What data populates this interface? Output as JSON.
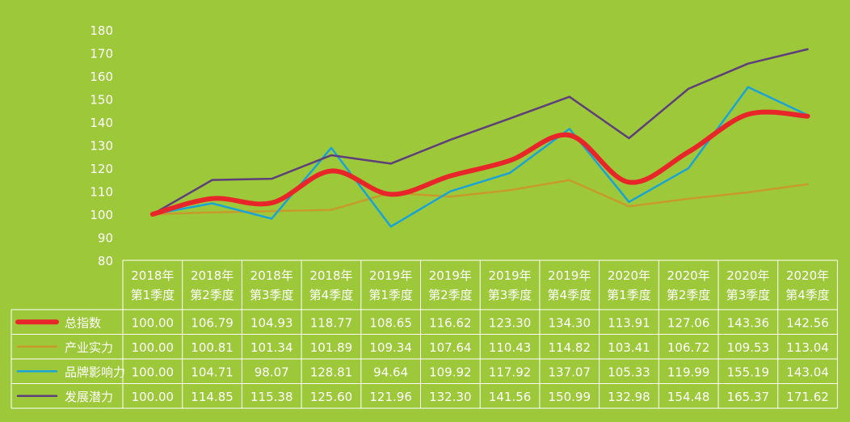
{
  "chart_data": {
    "type": "line",
    "title": "",
    "xlabel": "",
    "ylabel": "",
    "ylim": [
      80,
      180
    ],
    "yticks": [
      80,
      90,
      100,
      110,
      120,
      130,
      140,
      150,
      160,
      170,
      180
    ],
    "legend_placement": "left-of-table",
    "categories": [
      [
        "2018年",
        "第1季度"
      ],
      [
        "2018年",
        "第2季度"
      ],
      [
        "2018年",
        "第3季度"
      ],
      [
        "2018年",
        "第4季度"
      ],
      [
        "2019年",
        "第1季度"
      ],
      [
        "2019年",
        "第2季度"
      ],
      [
        "2019年",
        "第3季度"
      ],
      [
        "2019年",
        "第4季度"
      ],
      [
        "2020年",
        "第1季度"
      ],
      [
        "2020年",
        "第2季度"
      ],
      [
        "2020年",
        "第3季度"
      ],
      [
        "2020年",
        "第4季度"
      ]
    ],
    "series": [
      {
        "name": "总指数",
        "color": "#e8262a",
        "bold": true,
        "values": [
          100.0,
          106.79,
          104.93,
          118.77,
          108.65,
          116.62,
          123.3,
          134.3,
          113.91,
          127.06,
          143.36,
          142.56
        ]
      },
      {
        "name": "产业实力",
        "color": "#c79a2c",
        "bold": false,
        "values": [
          100.0,
          100.81,
          101.34,
          101.89,
          109.34,
          107.64,
          110.43,
          114.82,
          103.41,
          106.72,
          109.53,
          113.04
        ]
      },
      {
        "name": "品牌影响力",
        "color": "#1aa3d6",
        "bold": false,
        "values": [
          100.0,
          104.71,
          98.07,
          128.81,
          94.64,
          109.92,
          117.92,
          137.07,
          105.33,
          119.99,
          155.19,
          143.04
        ]
      },
      {
        "name": "发展潜力",
        "color": "#5e3f7a",
        "bold": false,
        "values": [
          100.0,
          114.85,
          115.38,
          125.6,
          121.96,
          132.3,
          141.56,
          150.99,
          132.98,
          154.48,
          165.37,
          171.62
        ]
      }
    ],
    "background_color": "#9dc83a",
    "grid": false
  }
}
